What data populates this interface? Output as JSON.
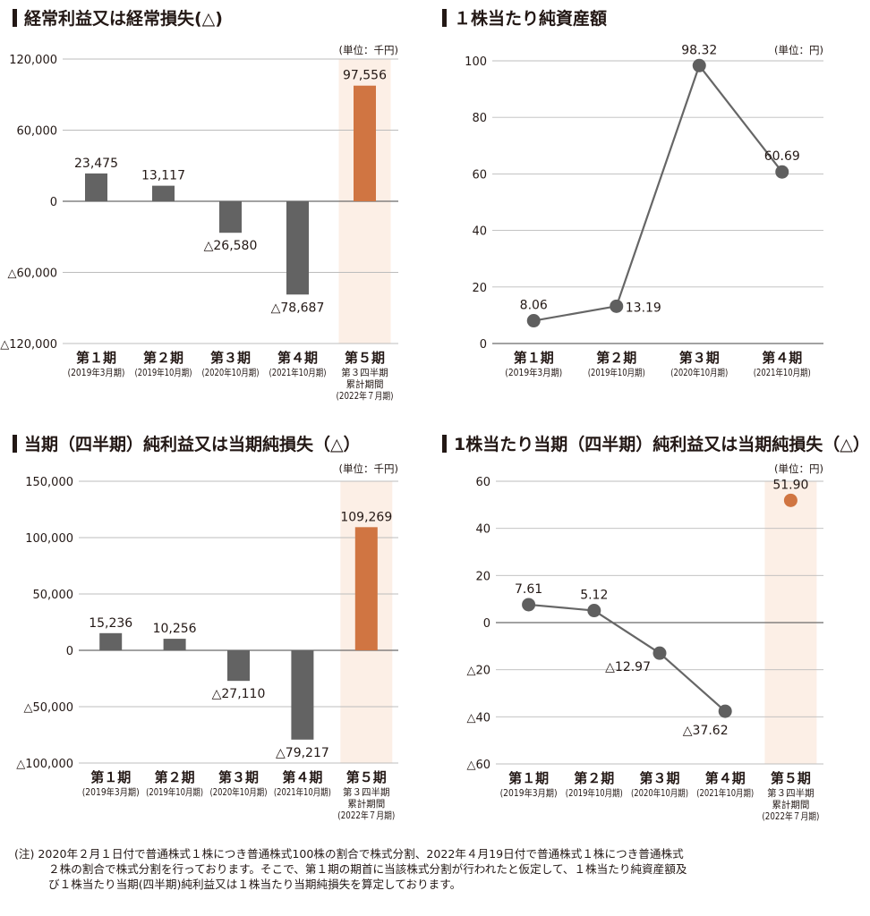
{
  "colors": {
    "gray": "#636363",
    "orange": "#d07542",
    "highlight": "#fcefe6",
    "grid": "#bcbcbc",
    "text": "#231815"
  },
  "note": {
    "line1": "(注) 2020年２月１日付で普通株式１株につき普通株式100株の割合で株式分割、2022年４月19日付で普通株式１株につき普通株式",
    "line2": "２株の割合で株式分割を行っております。そこで、第１期の期首に当該株式分割が行われたと仮定して、１株当たり純資産額及",
    "line3": "び１株当たり当期(四半期)純利益又は１株当たり当期純損失を算定しております。"
  },
  "chart_data": [
    {
      "type": "bar",
      "title": "経常利益又は経常損失(△)",
      "unit": "(単位：千円)",
      "categories": [
        "第１期",
        "第２期",
        "第３期",
        "第４期",
        "第５期"
      ],
      "category_sub": [
        [
          "(2019年3月期)"
        ],
        [
          "(2019年10月期)"
        ],
        [
          "(2020年10月期)"
        ],
        [
          "(2021年10月期)"
        ],
        [
          "第３四半期",
          "累計期間",
          "(2022年７月期)"
        ]
      ],
      "values": [
        23475,
        13117,
        -26580,
        -78687,
        97556
      ],
      "value_labels": [
        "23,475",
        "13,117",
        "△26,580",
        "△78,687",
        "97,556"
      ],
      "highlight_index": 4,
      "yticks": [
        120000,
        60000,
        0,
        -60000,
        -120000
      ],
      "ytick_labels": [
        "120,000",
        "60,000",
        "0",
        "△60,000",
        "△120,000"
      ],
      "ylim": [
        -120000,
        120000
      ],
      "grid": true
    },
    {
      "type": "line",
      "title": "１株当たり純資産額",
      "unit": "(単位：円)",
      "categories": [
        "第１期",
        "第２期",
        "第３期",
        "第４期"
      ],
      "category_sub": [
        [
          "(2019年3月期)"
        ],
        [
          "(2019年10月期)"
        ],
        [
          "(2020年10月期)"
        ],
        [
          "(2021年10月期)"
        ]
      ],
      "values": [
        8.06,
        13.19,
        98.32,
        60.69
      ],
      "value_labels": [
        "8.06",
        "13.19",
        "98.32",
        "60.69"
      ],
      "yticks": [
        100,
        80,
        60,
        40,
        20,
        0
      ],
      "ytick_labels": [
        "100",
        "80",
        "60",
        "40",
        "20",
        "0"
      ],
      "ylim": [
        0,
        100
      ],
      "grid": true
    },
    {
      "type": "bar",
      "title": "当期（四半期）純利益又は当期純損失（△）",
      "unit": "(単位：千円)",
      "categories": [
        "第１期",
        "第２期",
        "第３期",
        "第４期",
        "第５期"
      ],
      "category_sub": [
        [
          "(2019年3月期)"
        ],
        [
          "(2019年10月期)"
        ],
        [
          "(2020年10月期)"
        ],
        [
          "(2021年10月期)"
        ],
        [
          "第３四半期",
          "累計期間",
          "(2022年７月期)"
        ]
      ],
      "values": [
        15236,
        10256,
        -27110,
        -79217,
        109269
      ],
      "value_labels": [
        "15,236",
        "10,256",
        "△27,110",
        "△79,217",
        "109,269"
      ],
      "highlight_index": 4,
      "yticks": [
        150000,
        100000,
        50000,
        0,
        -50000,
        -100000
      ],
      "ytick_labels": [
        "150,000",
        "100,000",
        "50,000",
        "0",
        "△50,000",
        "△100,000"
      ],
      "ylim": [
        -100000,
        150000
      ],
      "grid": true
    },
    {
      "type": "line",
      "title": "1株当たり当期（四半期）純利益又は当期純損失（△）",
      "unit": "(単位：円)",
      "categories": [
        "第１期",
        "第２期",
        "第３期",
        "第４期",
        "第５期"
      ],
      "category_sub": [
        [
          "(2019年3月期)"
        ],
        [
          "(2019年10月期)"
        ],
        [
          "(2020年10月期)"
        ],
        [
          "(2021年10月期)"
        ],
        [
          "第３四半期",
          "累計期間",
          "(2022年７月期)"
        ]
      ],
      "values": [
        7.61,
        5.12,
        -12.97,
        -37.62,
        51.9
      ],
      "value_labels": [
        "7.61",
        "5.12",
        "△12.97",
        "△37.62",
        "51.90"
      ],
      "line_points": 4,
      "highlight_index": 4,
      "yticks": [
        60,
        40,
        20,
        0,
        -20,
        -40,
        -60
      ],
      "ytick_labels": [
        "60",
        "40",
        "20",
        "0",
        "△20",
        "△40",
        "△60"
      ],
      "ylim": [
        -60,
        60
      ],
      "grid": true
    }
  ]
}
